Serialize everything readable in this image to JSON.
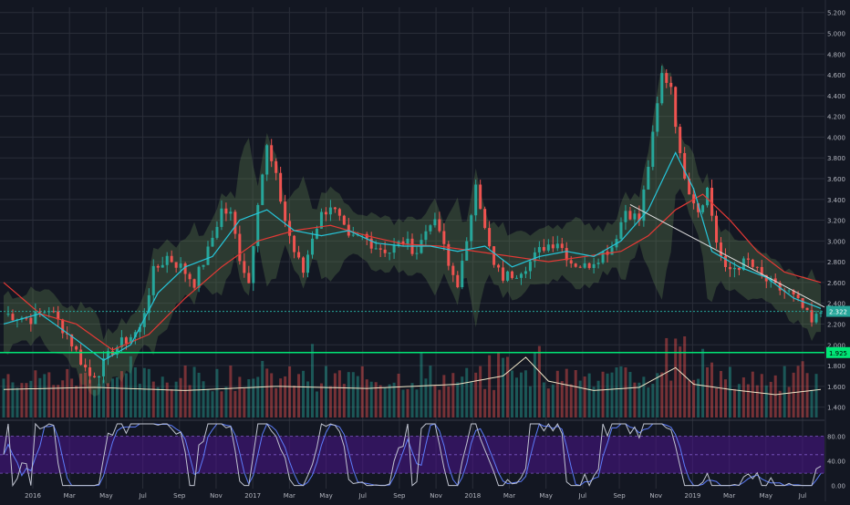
{
  "theme": {
    "background": "#131722",
    "grid": "#2a2e39",
    "text": "#b2b5be",
    "up": "#26a69a",
    "down": "#ef5350",
    "ma_fast": "#26c6da",
    "ma_slow": "#e53935",
    "bands": "#5b7a4c",
    "volume_ma": "#f0e6c8",
    "h_green_line": "#00e676",
    "price_badge": "#26a69a",
    "oscillator_band": "#4a148c",
    "oscillator_line_k": "#c0c4d0",
    "oscillator_line_d": "#5c7cfa"
  },
  "chart_data": [
    {
      "type": "candlestick",
      "panel": "price",
      "x_ticks": [
        "2016",
        "Mar",
        "May",
        "Jul",
        "Sep",
        "Nov",
        "2017",
        "Mar",
        "May",
        "Jul",
        "Sep",
        "Nov",
        "2018",
        "Mar",
        "May",
        "Jul",
        "Sep",
        "Nov",
        "2019",
        "Mar",
        "May",
        "Jul"
      ],
      "y_ticks": [
        "5.200",
        "5.000",
        "4.800",
        "4.600",
        "4.400",
        "4.200",
        "4.000",
        "3.800",
        "3.600",
        "3.400",
        "3.200",
        "3.000",
        "2.800",
        "2.600",
        "2.400",
        "2.200",
        "2.000",
        "1.800",
        "1.600",
        "1.400"
      ],
      "ylim": [
        1.3,
        5.25
      ],
      "price_path": [
        [
          0,
          2.3
        ],
        [
          6,
          2.25
        ],
        [
          10,
          2.35
        ],
        [
          14,
          2.1
        ],
        [
          17,
          1.85
        ],
        [
          19,
          1.7
        ],
        [
          21,
          1.75
        ],
        [
          24,
          1.95
        ],
        [
          27,
          2.05
        ],
        [
          30,
          2.15
        ],
        [
          33,
          2.7
        ],
        [
          36,
          2.85
        ],
        [
          39,
          2.75
        ],
        [
          42,
          2.6
        ],
        [
          45,
          2.9
        ],
        [
          48,
          3.3
        ],
        [
          50,
          3.25
        ],
        [
          52,
          2.85
        ],
        [
          54,
          2.6
        ],
        [
          56,
          3.4
        ],
        [
          58,
          3.9
        ],
        [
          60,
          3.6
        ],
        [
          62,
          3.2
        ],
        [
          64,
          2.9
        ],
        [
          66,
          2.7
        ],
        [
          68,
          3.05
        ],
        [
          70,
          3.25
        ],
        [
          72,
          3.35
        ],
        [
          74,
          3.2
        ],
        [
          76,
          3.0
        ],
        [
          79,
          3.05
        ],
        [
          82,
          2.95
        ],
        [
          85,
          2.9
        ],
        [
          88,
          3.0
        ],
        [
          91,
          2.9
        ],
        [
          94,
          3.2
        ],
        [
          96,
          3.1
        ],
        [
          98,
          2.75
        ],
        [
          100,
          2.6
        ],
        [
          102,
          2.95
        ],
        [
          104,
          3.6
        ],
        [
          106,
          3.1
        ],
        [
          108,
          2.75
        ],
        [
          110,
          2.65
        ],
        [
          113,
          2.7
        ],
        [
          116,
          2.8
        ],
        [
          119,
          2.95
        ],
        [
          122,
          3.0
        ],
        [
          125,
          2.8
        ],
        [
          128,
          2.75
        ],
        [
          131,
          2.85
        ],
        [
          134,
          2.95
        ],
        [
          137,
          3.3
        ],
        [
          140,
          3.2
        ],
        [
          143,
          4.0
        ],
        [
          145,
          4.6
        ],
        [
          147,
          4.5
        ],
        [
          149,
          3.8
        ],
        [
          151,
          3.5
        ],
        [
          153,
          3.3
        ],
        [
          155,
          3.5
        ],
        [
          157,
          3.0
        ],
        [
          159,
          2.7
        ],
        [
          161,
          2.75
        ],
        [
          164,
          2.8
        ],
        [
          167,
          2.65
        ],
        [
          170,
          2.55
        ],
        [
          173,
          2.5
        ],
        [
          176,
          2.35
        ],
        [
          178,
          2.2
        ],
        [
          180,
          2.32
        ]
      ],
      "ma_fast": [
        [
          0,
          2.2
        ],
        [
          8,
          2.3
        ],
        [
          16,
          2.05
        ],
        [
          22,
          1.85
        ],
        [
          28,
          2.0
        ],
        [
          34,
          2.5
        ],
        [
          40,
          2.75
        ],
        [
          46,
          2.85
        ],
        [
          52,
          3.2
        ],
        [
          58,
          3.3
        ],
        [
          64,
          3.1
        ],
        [
          70,
          3.05
        ],
        [
          76,
          3.1
        ],
        [
          82,
          2.98
        ],
        [
          88,
          2.95
        ],
        [
          94,
          2.95
        ],
        [
          100,
          2.9
        ],
        [
          106,
          2.95
        ],
        [
          112,
          2.75
        ],
        [
          118,
          2.85
        ],
        [
          124,
          2.9
        ],
        [
          130,
          2.85
        ],
        [
          136,
          3.0
        ],
        [
          142,
          3.3
        ],
        [
          148,
          3.85
        ],
        [
          152,
          3.5
        ],
        [
          156,
          2.9
        ],
        [
          162,
          2.75
        ],
        [
          168,
          2.65
        ],
        [
          174,
          2.45
        ],
        [
          180,
          2.35
        ]
      ],
      "ma_slow": [
        [
          0,
          2.6
        ],
        [
          8,
          2.3
        ],
        [
          16,
          2.2
        ],
        [
          24,
          1.95
        ],
        [
          32,
          2.1
        ],
        [
          40,
          2.45
        ],
        [
          48,
          2.75
        ],
        [
          56,
          3.0
        ],
        [
          64,
          3.1
        ],
        [
          72,
          3.15
        ],
        [
          80,
          3.05
        ],
        [
          88,
          2.97
        ],
        [
          96,
          2.95
        ],
        [
          104,
          2.9
        ],
        [
          112,
          2.85
        ],
        [
          120,
          2.8
        ],
        [
          128,
          2.85
        ],
        [
          136,
          2.9
        ],
        [
          142,
          3.05
        ],
        [
          148,
          3.3
        ],
        [
          154,
          3.45
        ],
        [
          160,
          3.2
        ],
        [
          166,
          2.9
        ],
        [
          172,
          2.7
        ],
        [
          180,
          2.6
        ]
      ],
      "trendline": [
        [
          138,
          3.35
        ],
        [
          180,
          2.45
        ]
      ],
      "last_price": "2.322",
      "h_green_line_value": "1.925",
      "h_green_line": 1.925
    },
    {
      "type": "bar",
      "panel": "volume",
      "count": 180,
      "volume_ma_path": [
        [
          0,
          1.57
        ],
        [
          20,
          1.59
        ],
        [
          40,
          1.56
        ],
        [
          60,
          1.6
        ],
        [
          80,
          1.58
        ],
        [
          100,
          1.62
        ],
        [
          110,
          1.7
        ],
        [
          115,
          1.88
        ],
        [
          120,
          1.65
        ],
        [
          130,
          1.56
        ],
        [
          140,
          1.59
        ],
        [
          148,
          1.78
        ],
        [
          152,
          1.62
        ],
        [
          160,
          1.57
        ],
        [
          170,
          1.52
        ],
        [
          180,
          1.57
        ]
      ]
    },
    {
      "type": "line",
      "panel": "oscillator",
      "y_ticks": [
        "80.00",
        "40.00",
        "0.00"
      ],
      "ylim": [
        -5,
        100
      ],
      "band": [
        20,
        80
      ]
    }
  ]
}
